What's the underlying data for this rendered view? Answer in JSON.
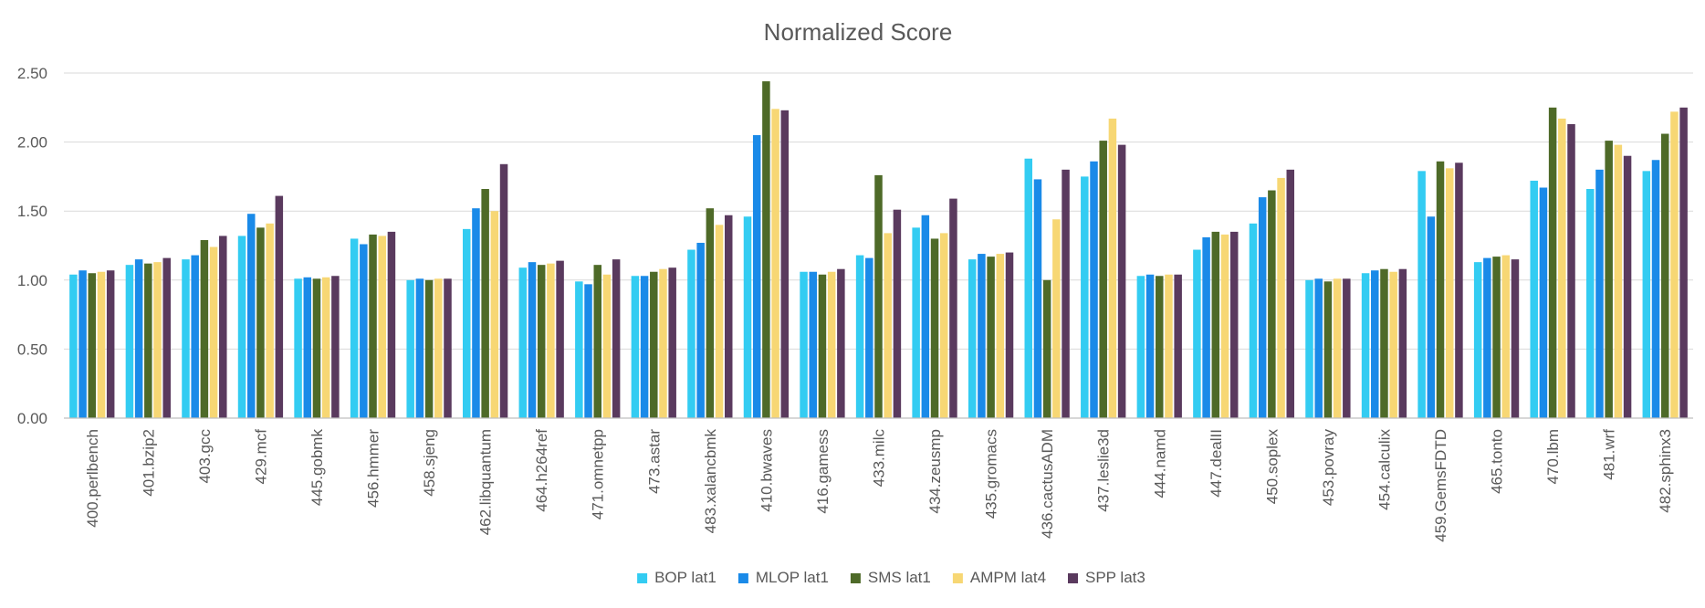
{
  "chart_data": {
    "type": "bar",
    "title": "Normalized Score",
    "xlabel": "",
    "ylabel": "",
    "ylim": [
      0,
      2.5
    ],
    "yticks": [
      "0.00",
      "0.50",
      "1.00",
      "1.50",
      "2.00",
      "2.50"
    ],
    "grid": true,
    "legend_position": "bottom",
    "categories": [
      "400.perlbench",
      "401.bzip2",
      "403.gcc",
      "429.mcf",
      "445.gobmk",
      "456.hmmer",
      "458.sjeng",
      "462.libquantum",
      "464.h264ref",
      "471.omnetpp",
      "473.astar",
      "483.xalancbmk",
      "410.bwaves",
      "416.gamess",
      "433.milc",
      "434.zeusmp",
      "435.gromacs",
      "436.cactusADM",
      "437.leslie3d",
      "444.namd",
      "447.dealII",
      "450.soplex",
      "453.povray",
      "454.calculix",
      "459.GemsFDTD",
      "465.tonto",
      "470.lbm",
      "481.wrf",
      "482.sphinx3"
    ],
    "series": [
      {
        "name": "BOP lat1",
        "color": "#33ccf2",
        "values": [
          1.04,
          1.11,
          1.15,
          1.32,
          1.01,
          1.3,
          1.0,
          1.37,
          1.09,
          0.99,
          1.03,
          1.22,
          1.46,
          1.06,
          1.18,
          1.38,
          1.15,
          1.88,
          1.75,
          1.03,
          1.22,
          1.41,
          1.0,
          1.05,
          1.79,
          1.13,
          1.72,
          1.66,
          1.79
        ]
      },
      {
        "name": "MLOP lat1",
        "color": "#1a8ae8",
        "values": [
          1.07,
          1.15,
          1.18,
          1.48,
          1.02,
          1.26,
          1.01,
          1.52,
          1.13,
          0.97,
          1.03,
          1.27,
          2.05,
          1.06,
          1.16,
          1.47,
          1.19,
          1.73,
          1.86,
          1.04,
          1.31,
          1.6,
          1.01,
          1.07,
          1.46,
          1.16,
          1.67,
          1.8,
          1.87
        ]
      },
      {
        "name": "SMS lat1",
        "color": "#4e6a28",
        "values": [
          1.05,
          1.12,
          1.29,
          1.38,
          1.01,
          1.33,
          1.0,
          1.66,
          1.11,
          1.11,
          1.06,
          1.52,
          2.44,
          1.04,
          1.76,
          1.3,
          1.17,
          1.0,
          2.01,
          1.03,
          1.35,
          1.65,
          0.99,
          1.08,
          1.86,
          1.17,
          2.25,
          2.01,
          2.06
        ]
      },
      {
        "name": "AMPM lat4",
        "color": "#f7d774",
        "values": [
          1.06,
          1.13,
          1.24,
          1.41,
          1.02,
          1.32,
          1.01,
          1.5,
          1.12,
          1.04,
          1.08,
          1.4,
          2.24,
          1.06,
          1.34,
          1.34,
          1.19,
          1.44,
          2.17,
          1.04,
          1.33,
          1.74,
          1.01,
          1.06,
          1.81,
          1.18,
          2.17,
          1.98,
          2.22
        ]
      },
      {
        "name": "SPP lat3",
        "color": "#5a3a5e",
        "values": [
          1.07,
          1.16,
          1.32,
          1.61,
          1.03,
          1.35,
          1.01,
          1.84,
          1.14,
          1.15,
          1.09,
          1.47,
          2.23,
          1.08,
          1.51,
          1.59,
          1.2,
          1.8,
          1.98,
          1.04,
          1.35,
          1.8,
          1.01,
          1.08,
          1.85,
          1.15,
          2.13,
          1.9,
          2.25
        ]
      }
    ]
  }
}
